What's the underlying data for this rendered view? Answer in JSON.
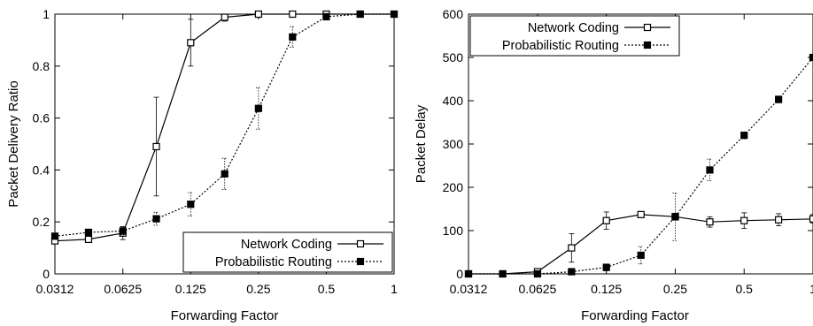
{
  "colors": {
    "ink": "#000000",
    "background": "#ffffff"
  },
  "chart_data": [
    {
      "type": "line",
      "xlabel": "Forwarding Factor",
      "ylabel": "Packet Delivery Ratio",
      "x_scale": "log2",
      "xlim": [
        0.0312,
        1
      ],
      "ylim": [
        0,
        1
      ],
      "x_ticks": [
        0.0312,
        0.0625,
        0.125,
        0.25,
        0.5,
        1
      ],
      "x_tick_labels": [
        "0.0312",
        "0.0625",
        "0.125",
        "0.25",
        "0.5",
        "1"
      ],
      "y_ticks": [
        0,
        0.2,
        0.4,
        0.6,
        0.8,
        1
      ],
      "y_tick_labels": [
        "0",
        "0.2",
        "0.4",
        "0.6",
        "0.8",
        "1"
      ],
      "legend_position": "bottom-right",
      "grid": false,
      "series": [
        {
          "name": "Network Coding",
          "marker": "open-square",
          "line": "solid",
          "x": [
            0.0312,
            0.044,
            0.0625,
            0.088,
            0.125,
            0.177,
            0.25,
            0.354,
            0.5,
            0.707,
            1
          ],
          "y": [
            0.127,
            0.133,
            0.157,
            0.49,
            0.89,
            0.988,
            1.0,
            1.0,
            1.0,
            1.0,
            1.0
          ],
          "err": [
            0.01,
            0.01,
            0.025,
            0.19,
            0.09,
            0.015,
            0.003,
            0.002,
            0.002,
            0.002,
            0.002
          ]
        },
        {
          "name": "Probabilistic Routing",
          "marker": "filled-square",
          "line": "dotted",
          "x": [
            0.0312,
            0.044,
            0.0625,
            0.088,
            0.125,
            0.177,
            0.25,
            0.354,
            0.5,
            0.707,
            1
          ],
          "y": [
            0.145,
            0.16,
            0.165,
            0.212,
            0.268,
            0.385,
            0.637,
            0.912,
            0.99,
            1.0,
            1.0
          ],
          "err": [
            0.01,
            0.01,
            0.015,
            0.025,
            0.045,
            0.06,
            0.08,
            0.04,
            0.01,
            0.003,
            0.002
          ]
        }
      ]
    },
    {
      "type": "line",
      "xlabel": "Forwarding Factor",
      "ylabel": "Packet Delay",
      "x_scale": "log2",
      "xlim": [
        0.0312,
        1
      ],
      "ylim": [
        0,
        600
      ],
      "x_ticks": [
        0.0312,
        0.0625,
        0.125,
        0.25,
        0.5,
        1
      ],
      "x_tick_labels": [
        "0.0312",
        "0.0625",
        "0.125",
        "0.25",
        "0.5",
        "1"
      ],
      "y_ticks": [
        0,
        100,
        200,
        300,
        400,
        500,
        600
      ],
      "y_tick_labels": [
        "0",
        "100",
        "200",
        "300",
        "400",
        "500",
        "600"
      ],
      "legend_position": "top-left",
      "grid": false,
      "series": [
        {
          "name": "Network Coding",
          "marker": "open-square",
          "line": "solid",
          "x": [
            0.0312,
            0.044,
            0.0625,
            0.088,
            0.125,
            0.177,
            0.25,
            0.354,
            0.5,
            0.707,
            1
          ],
          "y": [
            0,
            0,
            5,
            60,
            123,
            137,
            132,
            120,
            123,
            125,
            127
          ],
          "err": [
            0,
            0,
            6,
            33,
            20,
            7,
            8,
            12,
            18,
            14,
            10
          ]
        },
        {
          "name": "Probabilistic Routing",
          "marker": "filled-square",
          "line": "dotted",
          "x": [
            0.0312,
            0.044,
            0.0625,
            0.088,
            0.125,
            0.177,
            0.25,
            0.354,
            0.5,
            0.707,
            1
          ],
          "y": [
            0,
            0,
            0,
            5,
            15,
            43,
            132,
            240,
            320,
            403,
            500
          ],
          "err": [
            0,
            0,
            2,
            5,
            8,
            20,
            55,
            25,
            8,
            8,
            4
          ]
        }
      ]
    }
  ]
}
